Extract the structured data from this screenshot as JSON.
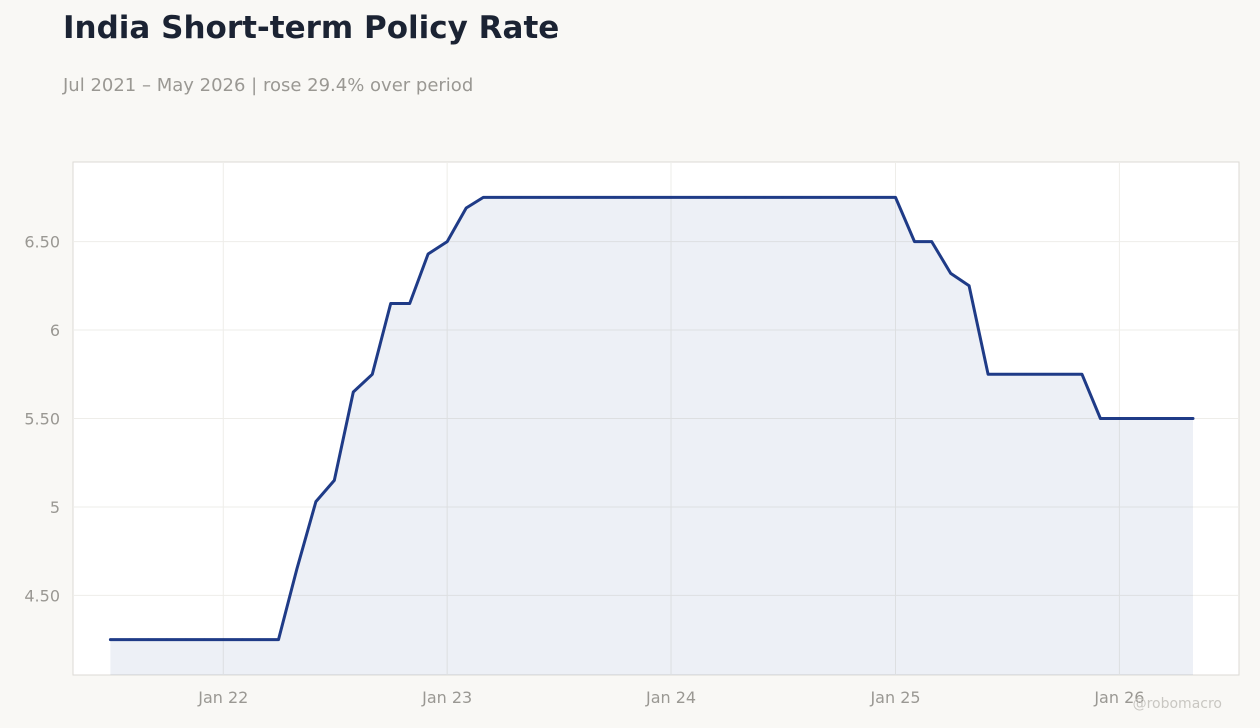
{
  "title": "India Short-term Policy Rate",
  "subtitle": "Jul 2021 – May 2026 | rose 29.4% over period",
  "watermark": "@robomacro",
  "colors": {
    "line": "#1f3b87",
    "fill": "#1f3b87",
    "text": "#1b2333",
    "muted": "#9a9893"
  },
  "chart_data": {
    "type": "area",
    "title": "India Short-term Policy Rate",
    "subtitle": "Jul 2021 – May 2026 | rose 29.4% over period",
    "xlabel": "",
    "ylabel": "",
    "grid": true,
    "legend": "none",
    "xlim": [
      "2021-05-01",
      "2026-07-15"
    ],
    "ylim": [
      4.05,
      6.95
    ],
    "x_ticks": [
      {
        "date": "2022-01-01",
        "label": "Jan 22"
      },
      {
        "date": "2023-01-01",
        "label": "Jan 23"
      },
      {
        "date": "2024-01-01",
        "label": "Jan 24"
      },
      {
        "date": "2025-01-01",
        "label": "Jan 25"
      },
      {
        "date": "2026-01-01",
        "label": "Jan 26"
      }
    ],
    "y_ticks": [
      {
        "value": 4.5,
        "label": "4.50"
      },
      {
        "value": 5.0,
        "label": "5"
      },
      {
        "value": 5.5,
        "label": "5.50"
      },
      {
        "value": 6.0,
        "label": "6"
      },
      {
        "value": 6.5,
        "label": "6.50"
      }
    ],
    "series": [
      {
        "points": [
          [
            "2021-07-01",
            4.25
          ],
          [
            "2021-08-01",
            4.25
          ],
          [
            "2021-09-01",
            4.25
          ],
          [
            "2021-10-01",
            4.25
          ],
          [
            "2021-11-01",
            4.25
          ],
          [
            "2021-12-01",
            4.25
          ],
          [
            "2022-01-01",
            4.25
          ],
          [
            "2022-02-01",
            4.25
          ],
          [
            "2022-03-01",
            4.25
          ],
          [
            "2022-04-01",
            4.25
          ],
          [
            "2022-05-01",
            4.65
          ],
          [
            "2022-06-01",
            5.03
          ],
          [
            "2022-07-01",
            5.15
          ],
          [
            "2022-08-01",
            5.65
          ],
          [
            "2022-09-01",
            5.75
          ],
          [
            "2022-10-01",
            6.15
          ],
          [
            "2022-11-01",
            6.15
          ],
          [
            "2022-12-01",
            6.43
          ],
          [
            "2023-01-01",
            6.5
          ],
          [
            "2023-02-01",
            6.69
          ],
          [
            "2023-03-01",
            6.75
          ],
          [
            "2023-04-01",
            6.75
          ],
          [
            "2023-05-01",
            6.75
          ],
          [
            "2023-06-01",
            6.75
          ],
          [
            "2023-07-01",
            6.75
          ],
          [
            "2023-08-01",
            6.75
          ],
          [
            "2023-09-01",
            6.75
          ],
          [
            "2023-10-01",
            6.75
          ],
          [
            "2023-11-01",
            6.75
          ],
          [
            "2023-12-01",
            6.75
          ],
          [
            "2024-01-01",
            6.75
          ],
          [
            "2024-02-01",
            6.75
          ],
          [
            "2024-03-01",
            6.75
          ],
          [
            "2024-04-01",
            6.75
          ],
          [
            "2024-05-01",
            6.75
          ],
          [
            "2024-06-01",
            6.75
          ],
          [
            "2024-07-01",
            6.75
          ],
          [
            "2024-08-01",
            6.75
          ],
          [
            "2024-09-01",
            6.75
          ],
          [
            "2024-10-01",
            6.75
          ],
          [
            "2024-11-01",
            6.75
          ],
          [
            "2024-12-01",
            6.75
          ],
          [
            "2025-01-01",
            6.75
          ],
          [
            "2025-02-01",
            6.5
          ],
          [
            "2025-03-01",
            6.5
          ],
          [
            "2025-04-01",
            6.32
          ],
          [
            "2025-05-01",
            6.25
          ],
          [
            "2025-06-01",
            5.75
          ],
          [
            "2025-07-01",
            5.75
          ],
          [
            "2025-08-01",
            5.75
          ],
          [
            "2025-09-01",
            5.75
          ],
          [
            "2025-10-01",
            5.75
          ],
          [
            "2025-11-01",
            5.75
          ],
          [
            "2025-12-01",
            5.5
          ],
          [
            "2026-01-01",
            5.5
          ],
          [
            "2026-02-01",
            5.5
          ],
          [
            "2026-03-01",
            5.5
          ],
          [
            "2026-04-01",
            5.5
          ],
          [
            "2026-05-01",
            5.5
          ]
        ]
      }
    ]
  }
}
